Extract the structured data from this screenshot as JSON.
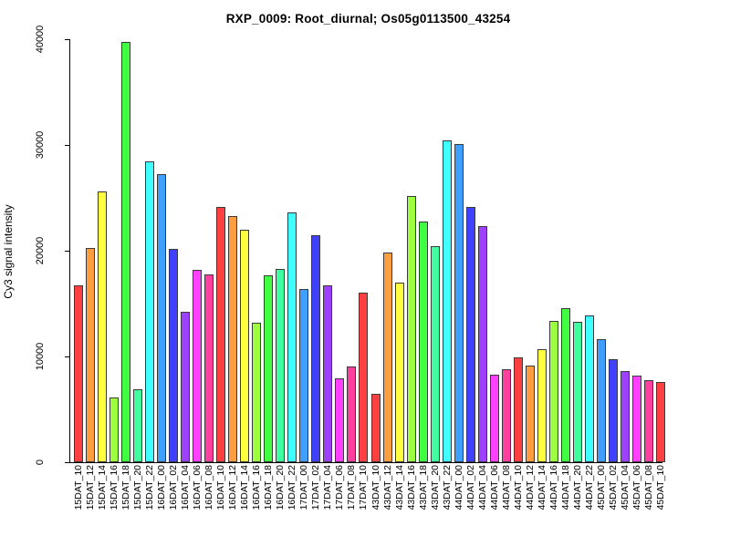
{
  "title": "RXP_0009: Root_diurnal; Os05g0113500_43254",
  "chart_data": {
    "type": "bar",
    "title": "RXP_0009: Root_diurnal; Os05g0113500_43254",
    "xlabel": "",
    "ylabel": "Cy3 signal intensity",
    "ylim": [
      0,
      40000
    ],
    "yticks": [
      0,
      10000,
      20000,
      30000,
      40000
    ],
    "ytick_labels": [
      "0",
      "10000",
      "20000",
      "30000",
      "40000"
    ],
    "grid": "off",
    "legend": "none",
    "categories": [
      "15DAT_10",
      "15DAT_12",
      "15DAT_14",
      "15DAT_16",
      "15DAT_18",
      "15DAT_20",
      "15DAT_22",
      "16DAT_00",
      "16DAT_02",
      "16DAT_04",
      "16DAT_06",
      "16DAT_08",
      "16DAT_10",
      "16DAT_12",
      "16DAT_14",
      "16DAT_16",
      "16DAT_18",
      "16DAT_20",
      "16DAT_22",
      "17DAT_00",
      "17DAT_02",
      "17DAT_04",
      "17DAT_06",
      "17DAT_08",
      "17DAT_10",
      "43DAT_10",
      "43DAT_12",
      "43DAT_14",
      "43DAT_16",
      "43DAT_18",
      "43DAT_20",
      "43DAT_22",
      "44DAT_00",
      "44DAT_02",
      "44DAT_04",
      "44DAT_06",
      "44DAT_08",
      "44DAT_10",
      "44DAT_12",
      "44DAT_14",
      "44DAT_16",
      "44DAT_18",
      "44DAT_20",
      "44DAT_22",
      "45DAT_00",
      "45DAT_02",
      "45DAT_04",
      "45DAT_06",
      "45DAT_08",
      "45DAT_10"
    ],
    "values": [
      16750,
      20300,
      25600,
      6100,
      39700,
      6900,
      28450,
      27250,
      20150,
      14200,
      18200,
      17800,
      24100,
      23300,
      21950,
      13150,
      17650,
      18300,
      23600,
      16400,
      21450,
      16750,
      7950,
      9050,
      16050,
      6500,
      19850,
      17000,
      25150,
      22750,
      20450,
      30400,
      30050,
      24100,
      22300,
      8300,
      8750,
      9950,
      9100,
      10700,
      13350,
      14550,
      13300,
      13900,
      11650,
      9750,
      8600,
      8150,
      7750,
      7600
    ],
    "bar_colors": [
      "#FF4040",
      "#FF9E40",
      "#FFFF40",
      "#9EFF40",
      "#40FF40",
      "#40FF9E",
      "#40FFFF",
      "#409EFF",
      "#4040FF",
      "#9E40FF",
      "#FF40FF",
      "#FF409E",
      "#FF4040",
      "#FF9E40",
      "#FFFF40",
      "#9EFF40",
      "#40FF40",
      "#40FF9E",
      "#40FFFF",
      "#409EFF",
      "#4040FF",
      "#9E40FF",
      "#FF40FF",
      "#FF409E",
      "#FF4040",
      "#FF4040",
      "#FF9E40",
      "#FFFF40",
      "#9EFF40",
      "#40FF40",
      "#40FF9E",
      "#40FFFF",
      "#409EFF",
      "#4040FF",
      "#9E40FF",
      "#FF40FF",
      "#FF409E",
      "#FF4040",
      "#FF9E40",
      "#FFFF40",
      "#9EFF40",
      "#40FF40",
      "#40FF9E",
      "#40FFFF",
      "#409EFF",
      "#4040FF",
      "#9E40FF",
      "#FF40FF",
      "#FF409E",
      "#FF4040"
    ],
    "palette_by_time_suffix": {
      "10": "#FF4040",
      "12": "#FF9E40",
      "14": "#FFFF40",
      "16": "#9EFF40",
      "18": "#40FF40",
      "20": "#40FF9E",
      "22": "#40FFFF",
      "00": "#409EFF",
      "02": "#4040FF",
      "04": "#9E40FF",
      "06": "#FF40FF",
      "08": "#FF409E"
    },
    "bar_border_color": "#3a3a3a",
    "axis_color": "#000000",
    "background_color": "#FFFFFF"
  }
}
